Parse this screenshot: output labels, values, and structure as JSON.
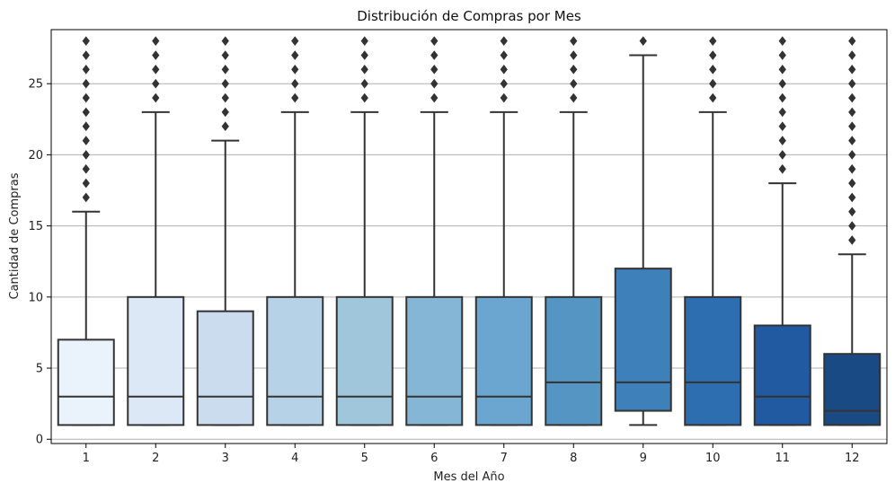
{
  "chart_data": {
    "type": "box",
    "title": "Distribución de Compras por Mes",
    "xlabel": "Mes del Año",
    "ylabel": "Cantidad de Compras",
    "ylim": [
      -0.3,
      28.8
    ],
    "yticks": [
      0,
      5,
      10,
      15,
      20,
      25
    ],
    "grid": "horizontal",
    "categories": [
      "1",
      "2",
      "3",
      "4",
      "5",
      "6",
      "7",
      "8",
      "9",
      "10",
      "11",
      "12"
    ],
    "colors": [
      "#eaf2fb",
      "#dce8f5",
      "#cadcee",
      "#b6d2e6",
      "#a0c6dc",
      "#86b6d6",
      "#6aa6d0",
      "#5595c3",
      "#3e80ba",
      "#2c6eaf",
      "#215aa0",
      "#1a4a84"
    ],
    "boxes": [
      {
        "whisker_low": 1,
        "q1": 1,
        "median": 3,
        "q3": 7,
        "whisker_high": 16,
        "outliers": [
          17,
          18,
          19,
          20,
          21,
          22,
          23,
          24,
          25,
          26,
          27,
          28
        ]
      },
      {
        "whisker_low": 1,
        "q1": 1,
        "median": 3,
        "q3": 10,
        "whisker_high": 23,
        "outliers": [
          24,
          25,
          26,
          27,
          28
        ]
      },
      {
        "whisker_low": 1,
        "q1": 1,
        "median": 3,
        "q3": 9,
        "whisker_high": 21,
        "outliers": [
          22,
          23,
          24,
          25,
          26,
          27,
          28
        ]
      },
      {
        "whisker_low": 1,
        "q1": 1,
        "median": 3,
        "q3": 10,
        "whisker_high": 23,
        "outliers": [
          24,
          25,
          26,
          27,
          28
        ]
      },
      {
        "whisker_low": 1,
        "q1": 1,
        "median": 3,
        "q3": 10,
        "whisker_high": 23,
        "outliers": [
          24,
          25,
          26,
          27,
          28
        ]
      },
      {
        "whisker_low": 1,
        "q1": 1,
        "median": 3,
        "q3": 10,
        "whisker_high": 23,
        "outliers": [
          24,
          25,
          26,
          27,
          28
        ]
      },
      {
        "whisker_low": 1,
        "q1": 1,
        "median": 3,
        "q3": 10,
        "whisker_high": 23,
        "outliers": [
          24,
          25,
          26,
          27,
          28
        ]
      },
      {
        "whisker_low": 1,
        "q1": 1,
        "median": 4,
        "q3": 10,
        "whisker_high": 23,
        "outliers": [
          24,
          25,
          26,
          27,
          28
        ]
      },
      {
        "whisker_low": 1,
        "q1": 2,
        "median": 4,
        "q3": 12,
        "whisker_high": 27,
        "outliers": [
          28
        ]
      },
      {
        "whisker_low": 1,
        "q1": 1,
        "median": 4,
        "q3": 10,
        "whisker_high": 23,
        "outliers": [
          24,
          25,
          26,
          27,
          28
        ]
      },
      {
        "whisker_low": 1,
        "q1": 1,
        "median": 3,
        "q3": 8,
        "whisker_high": 18,
        "outliers": [
          19,
          20,
          21,
          22,
          23,
          24,
          25,
          26,
          27,
          28
        ]
      },
      {
        "whisker_low": 1,
        "q1": 1,
        "median": 2,
        "q3": 6,
        "whisker_high": 13,
        "outliers": [
          14,
          15,
          16,
          17,
          18,
          19,
          20,
          21,
          22,
          23,
          24,
          25,
          26,
          27,
          28
        ]
      }
    ]
  }
}
